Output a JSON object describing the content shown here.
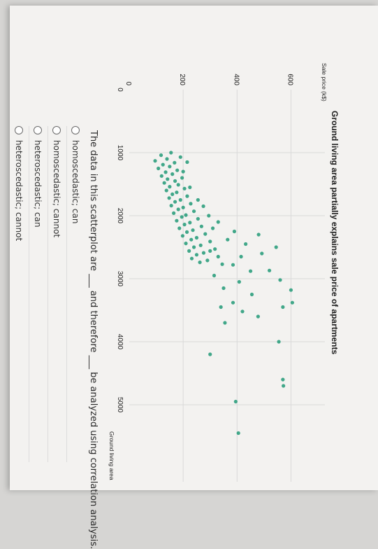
{
  "question": {
    "text": "The data in this scatterplot are ___ and therefore ___ be analyzed using correlation analysis.",
    "options": [
      "homoscedastic; can",
      "homoscedastic; cannot",
      "heteroscedastic; can",
      "heteroscedastic; cannot"
    ]
  },
  "colors": {
    "points": "#2e9f7d",
    "grid": "#d9d9d9"
  },
  "chart_data": {
    "type": "scatter",
    "title": "Ground living area partially explains sale price of apartments",
    "xlabel": "Ground living area",
    "ylabel": "Sale price (k$)",
    "xlim": [
      0,
      6000
    ],
    "ylim": [
      0,
      700
    ],
    "xticks": [
      "0",
      "1000",
      "2000",
      "3000",
      "4000",
      "5000"
    ],
    "yticks": [
      "200",
      "400",
      "600"
    ],
    "grid": true,
    "points": [
      [
        1000,
        155
      ],
      [
        1040,
        118
      ],
      [
        1070,
        190
      ],
      [
        1100,
        140
      ],
      [
        1130,
        96
      ],
      [
        1160,
        168
      ],
      [
        1190,
        125
      ],
      [
        1220,
        150
      ],
      [
        1250,
        108
      ],
      [
        1280,
        178
      ],
      [
        1310,
        135
      ],
      [
        1340,
        160
      ],
      [
        1370,
        120
      ],
      [
        1400,
        196
      ],
      [
        1420,
        142
      ],
      [
        1450,
        170
      ],
      [
        1480,
        130
      ],
      [
        1510,
        182
      ],
      [
        1540,
        150
      ],
      [
        1570,
        205
      ],
      [
        1600,
        138
      ],
      [
        1630,
        176
      ],
      [
        1660,
        160
      ],
      [
        1690,
        215
      ],
      [
        1720,
        148
      ],
      [
        1750,
        190
      ],
      [
        1780,
        170
      ],
      [
        1810,
        228
      ],
      [
        1840,
        156
      ],
      [
        1870,
        200
      ],
      [
        1900,
        182
      ],
      [
        1930,
        240
      ],
      [
        1960,
        165
      ],
      [
        1990,
        210
      ],
      [
        2020,
        195
      ],
      [
        2050,
        255
      ],
      [
        2080,
        176
      ],
      [
        2110,
        225
      ],
      [
        2140,
        205
      ],
      [
        2170,
        268
      ],
      [
        2200,
        186
      ],
      [
        2230,
        236
      ],
      [
        2260,
        214
      ],
      [
        2290,
        282
      ],
      [
        2320,
        198
      ],
      [
        2350,
        250
      ],
      [
        2380,
        230
      ],
      [
        2410,
        300
      ],
      [
        2440,
        210
      ],
      [
        2470,
        265
      ],
      [
        2500,
        240
      ],
      [
        2530,
        318
      ],
      [
        2560,
        222
      ],
      [
        2590,
        276
      ],
      [
        2620,
        250
      ],
      [
        2650,
        330
      ],
      [
        2680,
        232
      ],
      [
        2710,
        290
      ],
      [
        2740,
        262
      ],
      [
        2770,
        345
      ],
      [
        2100,
        330
      ],
      [
        2250,
        390
      ],
      [
        2380,
        365
      ],
      [
        2450,
        432
      ],
      [
        2560,
        300
      ],
      [
        2650,
        415
      ],
      [
        2780,
        385
      ],
      [
        2880,
        450
      ],
      [
        2950,
        315
      ],
      [
        3050,
        408
      ],
      [
        3150,
        350
      ],
      [
        3250,
        455
      ],
      [
        3380,
        385
      ],
      [
        3450,
        340
      ],
      [
        3520,
        420
      ],
      [
        3600,
        478
      ],
      [
        3700,
        355
      ],
      [
        2500,
        545
      ],
      [
        2870,
        520
      ],
      [
        3020,
        560
      ],
      [
        3180,
        600
      ],
      [
        3380,
        605
      ],
      [
        3450,
        570
      ],
      [
        4000,
        555
      ],
      [
        4600,
        570
      ],
      [
        4700,
        572
      ],
      [
        4950,
        395
      ],
      [
        5450,
        405
      ],
      [
        4200,
        300
      ],
      [
        2300,
        480
      ],
      [
        2600,
        492
      ],
      [
        1850,
        275
      ],
      [
        1750,
        255
      ],
      [
        1550,
        225
      ],
      [
        1300,
        200
      ],
      [
        1150,
        215
      ],
      [
        2000,
        295
      ],
      [
        2200,
        310
      ]
    ]
  }
}
